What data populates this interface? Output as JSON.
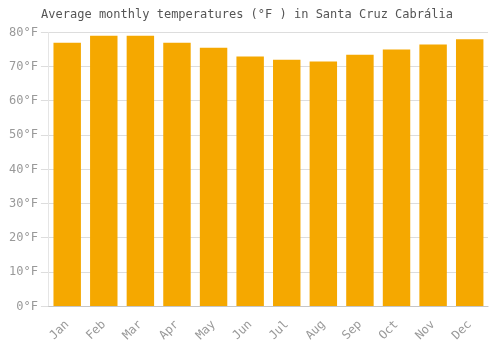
{
  "chart_data": {
    "type": "bar",
    "title": "Average monthly temperatures (°F ) in Santa Cruz Cabrália",
    "categories": [
      "Jan",
      "Feb",
      "Mar",
      "Apr",
      "May",
      "Jun",
      "Jul",
      "Aug",
      "Sep",
      "Oct",
      "Nov",
      "Dec"
    ],
    "values": [
      77,
      79,
      79,
      77,
      75.5,
      73,
      72,
      71.5,
      73.5,
      75,
      76.5,
      78
    ],
    "color": "#F5A800",
    "ylim": [
      0,
      80
    ],
    "yticks": [
      {
        "value": 0,
        "label": "0°F"
      },
      {
        "value": 10,
        "label": "10°F"
      },
      {
        "value": 20,
        "label": "20°F"
      },
      {
        "value": 30,
        "label": "30°F"
      },
      {
        "value": 40,
        "label": "40°F"
      },
      {
        "value": 50,
        "label": "50°F"
      },
      {
        "value": 60,
        "label": "60°F"
      },
      {
        "value": 70,
        "label": "70°F"
      },
      {
        "value": 80,
        "label": "80°F"
      }
    ],
    "grid": true
  }
}
